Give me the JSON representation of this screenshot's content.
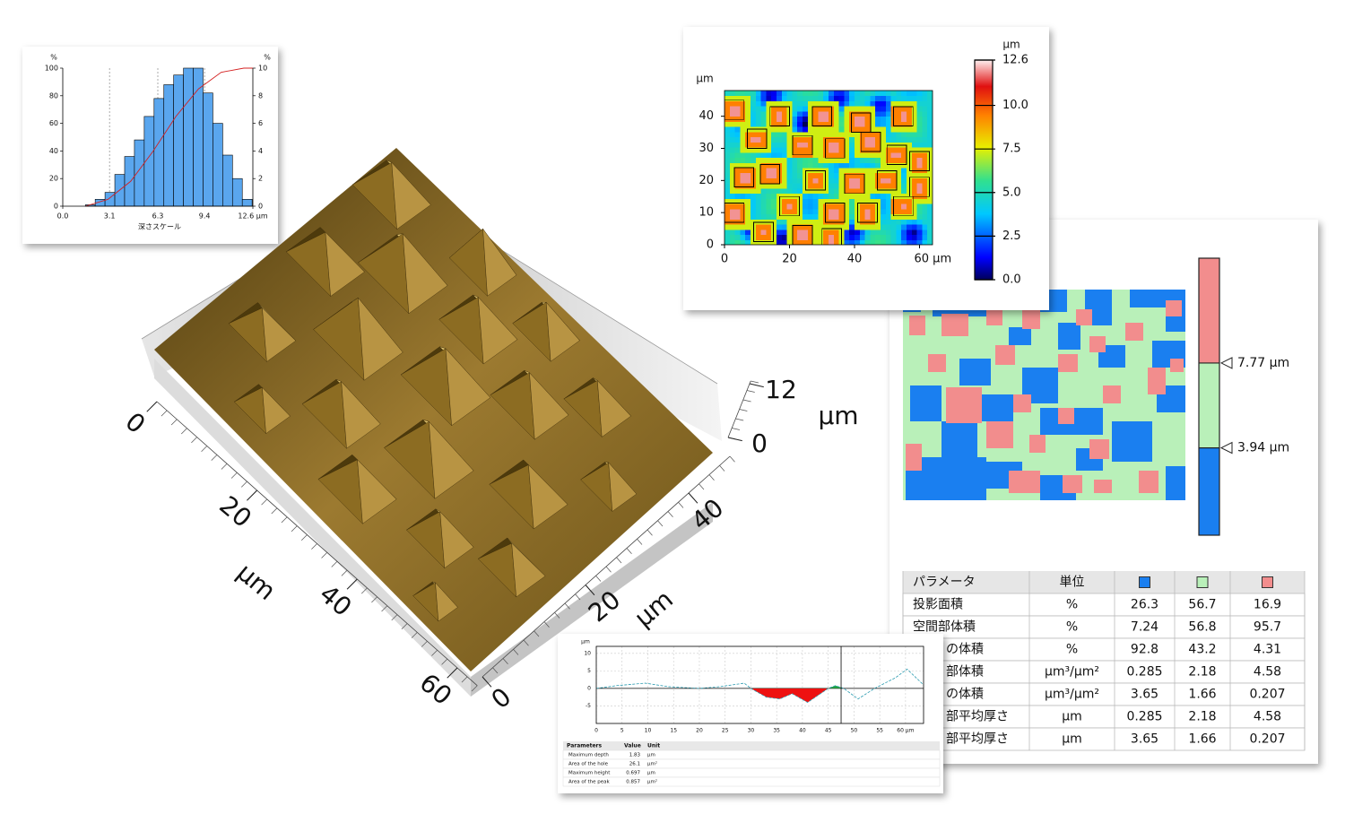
{
  "chart_data": [
    {
      "type": "histogram",
      "y_label": "%",
      "y2_label": "%",
      "x_label": "深さスケール",
      "xlim": [
        0,
        12.6
      ],
      "xticks": [
        {
          "value": 0,
          "label": "0.0"
        },
        3.1,
        6.3,
        9.4,
        {
          "value": 12.6,
          "label": "12.6 µm"
        }
      ],
      "ylim": [
        0,
        100
      ],
      "yticks": [
        0,
        20,
        40,
        60,
        80,
        100
      ],
      "y2lim": [
        0,
        10
      ],
      "y2ticks": [
        0,
        2,
        4,
        6,
        8,
        10
      ],
      "grid": true,
      "bins": [
        1.5,
        2.15,
        2.8,
        3.45,
        4.1,
        4.75,
        5.4,
        6.05,
        6.7,
        7.35,
        8.0,
        8.65,
        9.3,
        9.95,
        10.6,
        11.25,
        11.9,
        12.55
      ],
      "values": [
        0.1,
        0.5,
        1.0,
        2.3,
        3.6,
        4.8,
        6.5,
        7.8,
        8.8,
        9.5,
        10,
        10,
        8.2,
        6.0,
        3.7,
        2.0,
        0.5
      ],
      "axis": "y2",
      "color": "#5aa6ee",
      "cumulative_x": [
        1.5,
        3,
        4.5,
        6,
        7.5,
        9,
        10.5,
        12,
        12.6
      ],
      "cumulative": [
        0,
        5,
        18,
        40,
        65,
        85,
        97,
        100,
        100
      ],
      "cumulative_color": "#d42020"
    },
    {
      "type": "heatmap",
      "y_label": "µm",
      "xlim": [
        0,
        64
      ],
      "xticks": [
        0,
        20,
        40,
        {
          "value": 60,
          "label": "60 µm"
        }
      ],
      "ylim": [
        0,
        48
      ],
      "yticks": [
        0,
        10,
        20,
        30,
        40
      ],
      "colorbar_label": "µm",
      "colorbar_lim": [
        0,
        12.6
      ],
      "colorbar_ticks": [
        {
          "value": 0,
          "label": "0.0"
        },
        2.5,
        {
          "value": 5,
          "label": "5.0"
        },
        7.5,
        {
          "value": 10,
          "label": "10.0"
        },
        12.6
      ]
    },
    {
      "type": "threshold-map",
      "colorbar_lim": [
        0,
        12.5
      ],
      "thresholds": [
        {
          "value": 3.94,
          "label": "3.94 µm"
        },
        {
          "value": 7.77,
          "label": "7.77 µm"
        }
      ],
      "colors": [
        "#1a7ff0",
        "#b9f0b9",
        "#f28d8d"
      ]
    },
    {
      "type": "surface",
      "xlim": [
        0,
        64
      ],
      "xticks": [
        0,
        20,
        40,
        60
      ],
      "x_label": "µm",
      "ylim": [
        0,
        48
      ],
      "yticks": [
        0,
        20,
        40
      ],
      "y_label": "µm",
      "zlim": [
        0,
        12.6
      ],
      "zticks": [
        0,
        12
      ],
      "z_label": "µm"
    },
    {
      "type": "line",
      "y_label": "µm",
      "xlim": [
        0,
        63.5
      ],
      "xticks": [
        0,
        5,
        10,
        15,
        20,
        25,
        30,
        35,
        40,
        45,
        50,
        55,
        {
          "value": 60,
          "label": "60 µm"
        }
      ],
      "ylim": [
        -10,
        12
      ],
      "yticks": [
        -5,
        0,
        5,
        10
      ],
      "grid": true,
      "x": [
        0,
        4,
        9.5,
        14,
        20,
        24,
        28.7,
        30,
        33,
        35.6,
        38,
        41,
        43,
        45,
        46.4,
        48,
        50.8,
        54,
        58,
        60.3,
        63.5
      ],
      "values": [
        0,
        0.8,
        1.5,
        0.5,
        0,
        0.5,
        1.5,
        0,
        -2.5,
        -3,
        -1.5,
        -4,
        -2,
        0,
        0.8,
        0,
        -3,
        0,
        3,
        5.5,
        1
      ],
      "color": "#2a9bb0",
      "below_color": "#ee1111",
      "above_color": "#22aa44",
      "analysis_range": [
        30,
        47.5
      ]
    }
  ],
  "threshold_table": {
    "header": [
      "パラメータ",
      "単位"
    ],
    "rows": [
      [
        "投影面積",
        "%",
        26.3,
        56.7,
        16.9
      ],
      [
        "空間部体積",
        "%",
        7.24,
        56.8,
        95.7
      ],
      [
        "の体積",
        "%",
        92.8,
        43.2,
        4.31
      ],
      [
        "部体積",
        "µm³/µm²",
        0.285,
        2.18,
        4.58
      ],
      [
        "の体積",
        "µm³/µm²",
        3.65,
        1.66,
        0.207
      ],
      [
        "部平均厚さ",
        "µm",
        0.285,
        2.18,
        4.58
      ],
      [
        "部平均厚さ",
        "µm",
        3.65,
        1.66,
        0.207
      ]
    ]
  },
  "profile_table": {
    "header": [
      "Parameters",
      "Value",
      "Unit"
    ],
    "rows": [
      [
        "Maximum depth",
        1.83,
        "µm"
      ],
      [
        "Area of the hole",
        26.1,
        "µm²"
      ],
      [
        "Maximum height",
        0.697,
        "µm"
      ],
      [
        "Area of the peak",
        0.857,
        "µm²"
      ]
    ]
  }
}
